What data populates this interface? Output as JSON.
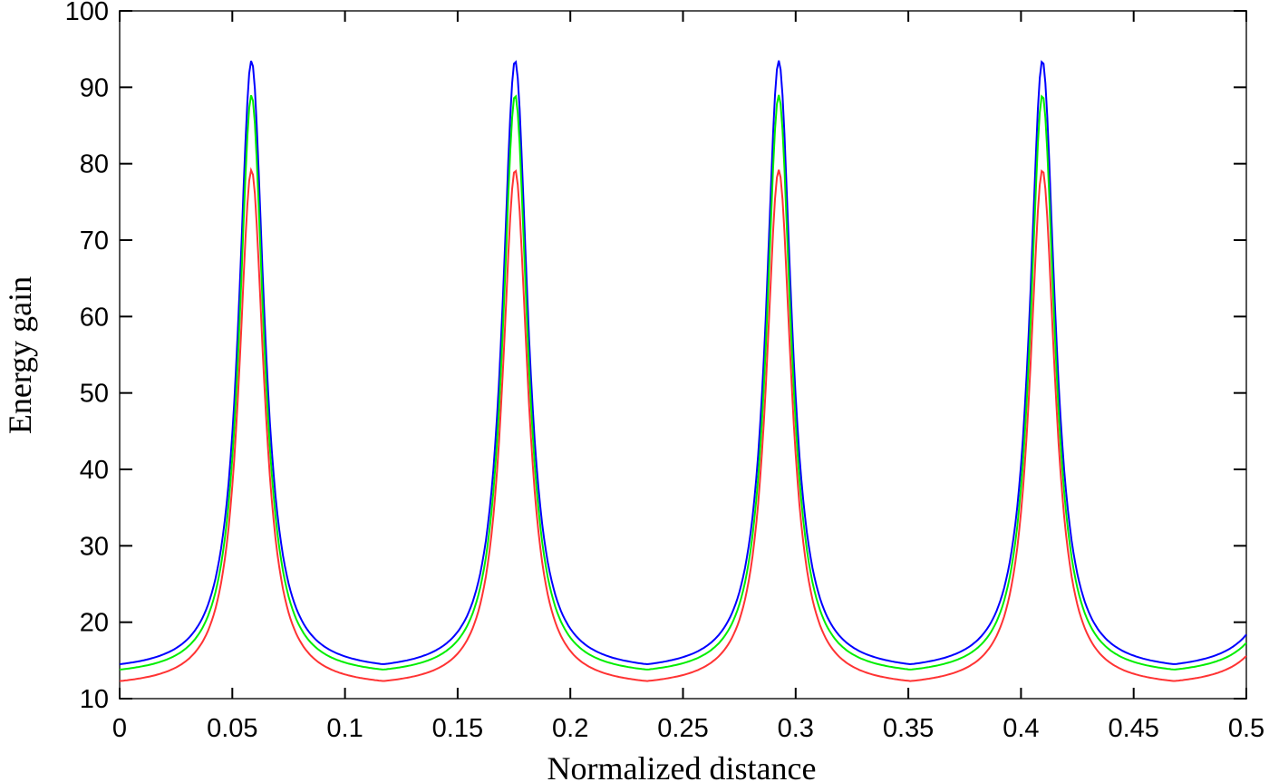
{
  "chart_data": {
    "type": "line",
    "title": "",
    "xlabel": "Normalized distance",
    "ylabel": "Energy gain",
    "xlim": [
      0,
      0.5
    ],
    "ylim": [
      10,
      100
    ],
    "grid": false,
    "legend": null,
    "x_ticks": [
      "0",
      "0.05",
      "0.1",
      "0.15",
      "0.2",
      "0.25",
      "0.3",
      "0.35",
      "0.4",
      "0.45",
      "0.5"
    ],
    "y_ticks": [
      "10",
      "20",
      "30",
      "40",
      "50",
      "60",
      "70",
      "80",
      "90",
      "100"
    ],
    "period": 0.117,
    "peak_positions": [
      0.0585,
      0.1755,
      0.2925,
      0.4095
    ],
    "series": [
      {
        "name": "blue",
        "color": "#0000ff",
        "peak": 93.5,
        "min": 14.5,
        "finesse_hw": 0.0068
      },
      {
        "name": "green",
        "color": "#00ee00",
        "peak": 89.0,
        "min": 13.8,
        "finesse_hw": 0.0066
      },
      {
        "name": "red",
        "color": "#ff3333",
        "peak": 79.2,
        "min": 12.3,
        "finesse_hw": 0.0068
      }
    ]
  }
}
